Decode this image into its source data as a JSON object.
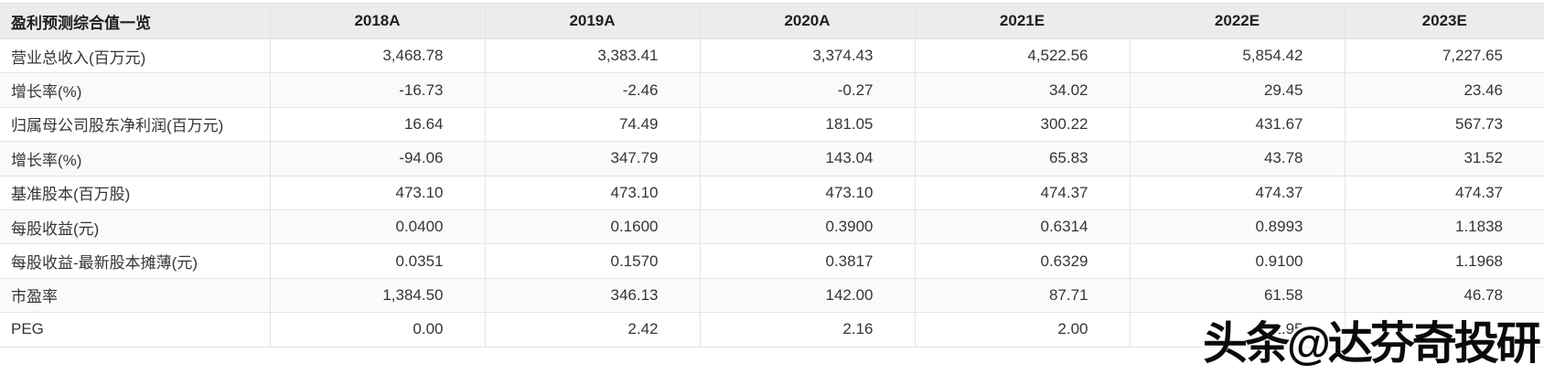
{
  "table": {
    "title": "盈利预测综合值一览",
    "columns": [
      "2018A",
      "2019A",
      "2020A",
      "2021E",
      "2022E",
      "2023E"
    ],
    "rows": [
      {
        "label": "营业总收入(百万元)",
        "values": [
          "3,468.78",
          "3,383.41",
          "3,374.43",
          "4,522.56",
          "5,854.42",
          "7,227.65"
        ]
      },
      {
        "label": "增长率(%)",
        "values": [
          "-16.73",
          "-2.46",
          "-0.27",
          "34.02",
          "29.45",
          "23.46"
        ]
      },
      {
        "label": "归属母公司股东净利润(百万元)",
        "values": [
          "16.64",
          "74.49",
          "181.05",
          "300.22",
          "431.67",
          "567.73"
        ]
      },
      {
        "label": "增长率(%)",
        "values": [
          "-94.06",
          "347.79",
          "143.04",
          "65.83",
          "43.78",
          "31.52"
        ]
      },
      {
        "label": "基准股本(百万股)",
        "values": [
          "473.10",
          "473.10",
          "473.10",
          "474.37",
          "474.37",
          "474.37"
        ]
      },
      {
        "label": "每股收益(元)",
        "values": [
          "0.0400",
          "0.1600",
          "0.3900",
          "0.6314",
          "0.8993",
          "1.1838"
        ]
      },
      {
        "label": "每股收益-最新股本摊薄(元)",
        "values": [
          "0.0351",
          "0.1570",
          "0.3817",
          "0.6329",
          "0.9100",
          "1.1968"
        ]
      },
      {
        "label": "市盈率",
        "values": [
          "1,384.50",
          "346.13",
          "142.00",
          "87.71",
          "61.58",
          "46.78"
        ]
      },
      {
        "label": "PEG",
        "values": [
          "0.00",
          "2.42",
          "2.16",
          "2.00",
          "1.95",
          ""
        ]
      }
    ]
  },
  "watermark": {
    "text": "头条@达芬奇投研"
  },
  "colors": {
    "header_bg": "#ececee",
    "stripe_bg": "#fafafa",
    "border": "#e4e4e6",
    "text": "#353535",
    "watermark_text": "#0a0a0a"
  }
}
